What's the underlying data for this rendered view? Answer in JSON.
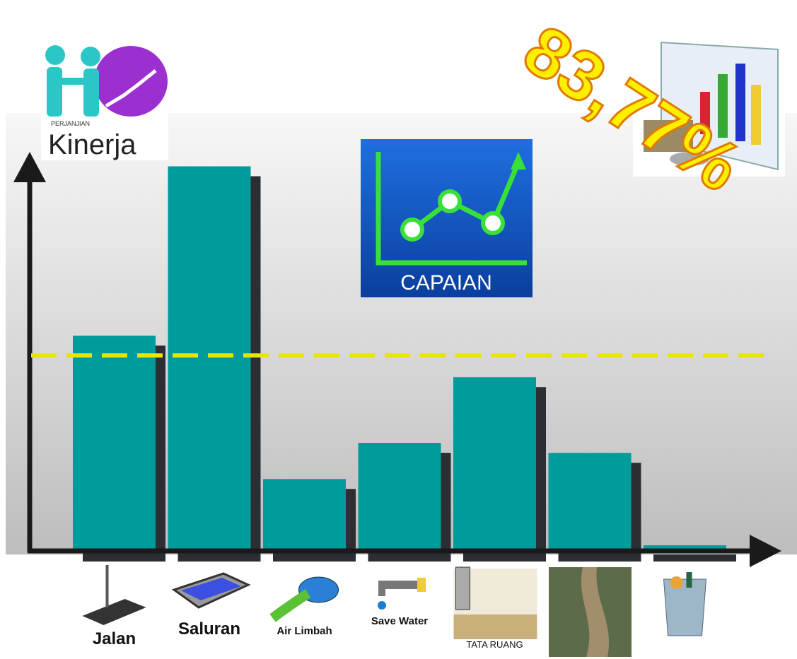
{
  "chart_data": {
    "type": "bar",
    "categories": [
      "Jalan",
      "Saluran",
      "Air Limbah",
      "Save Water",
      "TATA RUANG",
      null,
      null
    ],
    "values": [
      92.2,
      164.8,
      30.8,
      46.3,
      74.4,
      42.0,
      2.4
    ],
    "color": "#009b9b",
    "shadow_color": "#2b2f33",
    "ylim": [
      0,
      171
    ],
    "reference_line": {
      "value": 83.77,
      "label": "83,77%",
      "color": "#e6e600"
    }
  },
  "logo": {
    "small": "PERJANJIAN",
    "big": "Kinerja"
  },
  "badge": "CAPAIAN"
}
